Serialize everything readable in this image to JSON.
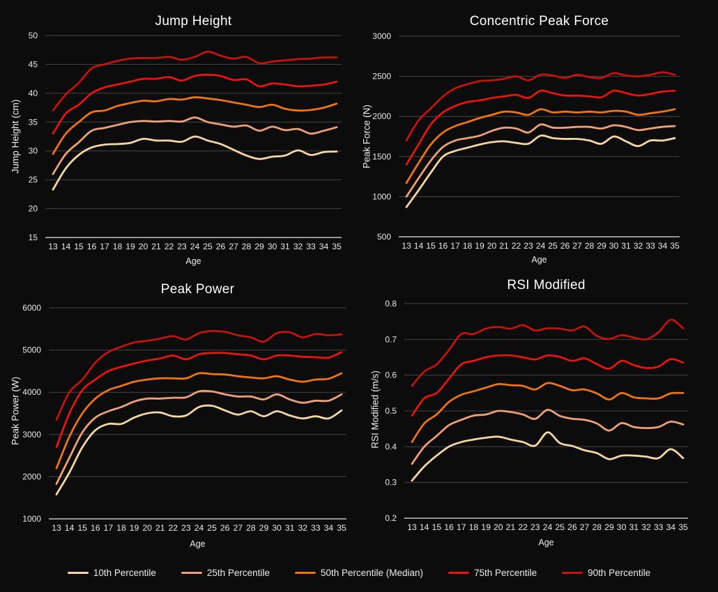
{
  "colors": {
    "background": "#0c0c0c",
    "grid": "#464646",
    "axis": "#c4c4c4",
    "tick_text": "#e8e8e8",
    "title_text": "#ffffff"
  },
  "legend": {
    "items": [
      {
        "label": "10th Percentile",
        "color": "#f4d7a2"
      },
      {
        "label": "25th Percentile",
        "color": "#efa076"
      },
      {
        "label": "50th Percentile (Median)",
        "color": "#ee7414"
      },
      {
        "label": "75th Percentile",
        "color": "#e8150d"
      },
      {
        "label": "90th Percentile",
        "color": "#c3130b"
      }
    ]
  },
  "chart_data": [
    {
      "id": "jump-height",
      "type": "line",
      "title": "Jump Height",
      "xlabel": "Age",
      "ylabel": "Jump Height (cm)",
      "x": [
        13,
        14,
        15,
        16,
        17,
        18,
        19,
        20,
        21,
        22,
        23,
        24,
        25,
        26,
        27,
        28,
        29,
        30,
        31,
        32,
        33,
        34,
        35
      ],
      "ylim": [
        15,
        50
      ],
      "yticks": [
        15,
        20,
        25,
        30,
        35,
        40,
        45,
        50
      ],
      "ytick_labels": [
        "15",
        "20",
        "25",
        "30",
        "35",
        "40",
        "45",
        "50"
      ],
      "grid": true,
      "series": [
        {
          "name": "10th Percentile",
          "color": "#f4d7a2",
          "values": [
            23.3,
            27.0,
            29.3,
            30.6,
            31.1,
            31.2,
            31.4,
            32.1,
            31.8,
            31.8,
            31.6,
            32.5,
            31.8,
            31.2,
            30.2,
            29.2,
            28.6,
            29.0,
            29.2,
            30.1,
            29.3,
            29.8,
            29.9
          ]
        },
        {
          "name": "25th Percentile",
          "color": "#efa076",
          "values": [
            26.0,
            29.5,
            31.5,
            33.5,
            34.0,
            34.5,
            35.0,
            35.2,
            35.1,
            35.2,
            35.1,
            35.8,
            35.0,
            34.6,
            34.2,
            34.4,
            33.5,
            34.2,
            33.6,
            33.8,
            33.0,
            33.5,
            34.1
          ]
        },
        {
          "name": "50th Percentile (Median)",
          "color": "#ee7414",
          "values": [
            29.5,
            33.0,
            35.0,
            36.7,
            37.0,
            37.8,
            38.3,
            38.7,
            38.6,
            39.0,
            38.9,
            39.3,
            39.1,
            38.8,
            38.4,
            38.0,
            37.6,
            38.0,
            37.3,
            37.0,
            37.1,
            37.5,
            38.2
          ]
        },
        {
          "name": "75th Percentile",
          "color": "#e8150d",
          "values": [
            33.0,
            36.5,
            38.0,
            40.0,
            41.0,
            41.5,
            42.0,
            42.5,
            42.5,
            42.8,
            42.2,
            43.0,
            43.2,
            43.0,
            42.3,
            42.4,
            41.2,
            41.7,
            41.5,
            41.2,
            41.3,
            41.5,
            42.0
          ]
        },
        {
          "name": "90th Percentile",
          "color": "#c3130b",
          "values": [
            37.0,
            39.8,
            41.8,
            44.3,
            45.0,
            45.6,
            46.0,
            46.1,
            46.1,
            46.3,
            45.8,
            46.3,
            47.2,
            46.5,
            46.0,
            46.3,
            45.2,
            45.5,
            45.7,
            45.9,
            46.0,
            46.2,
            46.2
          ]
        }
      ]
    },
    {
      "id": "concentric-peak-force",
      "type": "line",
      "title": "Concentric Peak Force",
      "xlabel": "Age",
      "ylabel": "Peak Force (N)",
      "x": [
        13,
        14,
        15,
        16,
        17,
        18,
        19,
        20,
        21,
        22,
        23,
        24,
        25,
        26,
        27,
        28,
        29,
        30,
        31,
        32,
        33,
        34,
        35
      ],
      "ylim": [
        500,
        3000
      ],
      "yticks": [
        500,
        1000,
        1500,
        2000,
        2500,
        3000
      ],
      "ytick_labels": [
        "500",
        "1000",
        "1500",
        "2000",
        "2500",
        "3000"
      ],
      "grid": true,
      "series": [
        {
          "name": "10th Percentile",
          "color": "#f4d7a2",
          "values": [
            870,
            1080,
            1300,
            1500,
            1570,
            1610,
            1650,
            1680,
            1690,
            1670,
            1660,
            1760,
            1730,
            1720,
            1720,
            1700,
            1660,
            1750,
            1690,
            1630,
            1700,
            1700,
            1730
          ]
        },
        {
          "name": "25th Percentile",
          "color": "#efa076",
          "values": [
            1000,
            1230,
            1450,
            1620,
            1700,
            1730,
            1760,
            1820,
            1860,
            1850,
            1800,
            1900,
            1860,
            1860,
            1870,
            1870,
            1850,
            1890,
            1870,
            1830,
            1850,
            1870,
            1880
          ]
        },
        {
          "name": "50th Percentile (Median)",
          "color": "#ee7414",
          "values": [
            1170,
            1420,
            1650,
            1800,
            1880,
            1930,
            1980,
            2020,
            2060,
            2050,
            2020,
            2090,
            2050,
            2060,
            2050,
            2060,
            2050,
            2070,
            2060,
            2020,
            2040,
            2060,
            2090
          ]
        },
        {
          "name": "75th Percentile",
          "color": "#e8150d",
          "values": [
            1400,
            1650,
            1900,
            2050,
            2130,
            2180,
            2200,
            2230,
            2250,
            2270,
            2230,
            2320,
            2290,
            2260,
            2260,
            2250,
            2240,
            2320,
            2290,
            2260,
            2280,
            2310,
            2320
          ]
        },
        {
          "name": "90th Percentile",
          "color": "#c3130b",
          "values": [
            1700,
            1950,
            2100,
            2250,
            2350,
            2400,
            2440,
            2450,
            2470,
            2500,
            2450,
            2520,
            2510,
            2480,
            2520,
            2490,
            2480,
            2540,
            2510,
            2500,
            2520,
            2550,
            2520
          ]
        }
      ]
    },
    {
      "id": "peak-power",
      "type": "line",
      "title": "Peak Power",
      "xlabel": "Age",
      "ylabel": "Peak Power (W)",
      "x": [
        13,
        14,
        15,
        16,
        17,
        18,
        19,
        20,
        21,
        22,
        23,
        24,
        25,
        26,
        27,
        28,
        29,
        30,
        31,
        32,
        33,
        34,
        35
      ],
      "ylim": [
        1000,
        6000
      ],
      "yticks": [
        1000,
        2000,
        3000,
        4000,
        5000,
        6000
      ],
      "ytick_labels": [
        "1000",
        "2000",
        "3000",
        "4000",
        "5000",
        "6000"
      ],
      "grid": true,
      "series": [
        {
          "name": "10th Percentile",
          "color": "#f4d7a2",
          "values": [
            1580,
            2100,
            2700,
            3100,
            3250,
            3250,
            3400,
            3500,
            3520,
            3430,
            3450,
            3650,
            3680,
            3570,
            3470,
            3550,
            3430,
            3550,
            3450,
            3380,
            3430,
            3380,
            3570
          ]
        },
        {
          "name": "25th Percentile",
          "color": "#efa076",
          "values": [
            1830,
            2450,
            3050,
            3400,
            3550,
            3650,
            3780,
            3850,
            3850,
            3870,
            3880,
            4020,
            4020,
            3950,
            3900,
            3900,
            3830,
            3950,
            3830,
            3750,
            3800,
            3800,
            3950
          ]
        },
        {
          "name": "50th Percentile (Median)",
          "color": "#ee7414",
          "values": [
            2200,
            2950,
            3500,
            3850,
            4050,
            4150,
            4250,
            4300,
            4330,
            4330,
            4330,
            4450,
            4430,
            4420,
            4380,
            4350,
            4330,
            4380,
            4300,
            4250,
            4300,
            4320,
            4450
          ]
        },
        {
          "name": "75th Percentile",
          "color": "#e8150d",
          "values": [
            2700,
            3500,
            4050,
            4300,
            4500,
            4600,
            4680,
            4750,
            4800,
            4870,
            4780,
            4900,
            4930,
            4930,
            4900,
            4870,
            4780,
            4870,
            4870,
            4840,
            4830,
            4820,
            4950
          ]
        },
        {
          "name": "90th Percentile",
          "color": "#c3130b",
          "values": [
            3350,
            4000,
            4300,
            4700,
            4950,
            5080,
            5180,
            5220,
            5270,
            5330,
            5250,
            5400,
            5450,
            5430,
            5350,
            5300,
            5200,
            5400,
            5420,
            5300,
            5380,
            5350,
            5370
          ]
        }
      ]
    },
    {
      "id": "rsi-modified",
      "type": "line",
      "title": "RSI Modified",
      "xlabel": "Age",
      "ylabel": "RSI Modified (m/s)",
      "x": [
        13,
        14,
        15,
        16,
        17,
        18,
        19,
        20,
        21,
        22,
        23,
        24,
        25,
        26,
        27,
        28,
        29,
        30,
        31,
        32,
        33,
        34,
        35
      ],
      "ylim": [
        0.2,
        0.8
      ],
      "yticks": [
        0.2,
        0.3,
        0.4,
        0.5,
        0.6,
        0.7,
        0.8
      ],
      "ytick_labels": [
        "0.2",
        "0.3",
        "0.4",
        "0.5",
        "0.6",
        "0.7",
        "0.8"
      ],
      "grid": true,
      "series": [
        {
          "name": "10th Percentile",
          "color": "#f4d7a2",
          "values": [
            0.305,
            0.345,
            0.375,
            0.4,
            0.413,
            0.42,
            0.425,
            0.428,
            0.42,
            0.413,
            0.403,
            0.44,
            0.41,
            0.402,
            0.39,
            0.382,
            0.365,
            0.375,
            0.375,
            0.372,
            0.368,
            0.393,
            0.368
          ]
        },
        {
          "name": "25th Percentile",
          "color": "#efa076",
          "values": [
            0.352,
            0.4,
            0.43,
            0.46,
            0.475,
            0.487,
            0.49,
            0.5,
            0.497,
            0.49,
            0.478,
            0.503,
            0.486,
            0.478,
            0.475,
            0.465,
            0.445,
            0.466,
            0.455,
            0.452,
            0.455,
            0.47,
            0.462
          ]
        },
        {
          "name": "50th Percentile (Median)",
          "color": "#ee7414",
          "values": [
            0.413,
            0.465,
            0.49,
            0.525,
            0.545,
            0.555,
            0.565,
            0.575,
            0.572,
            0.57,
            0.56,
            0.578,
            0.57,
            0.558,
            0.56,
            0.549,
            0.532,
            0.55,
            0.538,
            0.535,
            0.535,
            0.549,
            0.55
          ]
        },
        {
          "name": "75th Percentile",
          "color": "#e8150d",
          "values": [
            0.487,
            0.535,
            0.55,
            0.59,
            0.63,
            0.64,
            0.65,
            0.655,
            0.655,
            0.65,
            0.644,
            0.655,
            0.651,
            0.64,
            0.647,
            0.631,
            0.618,
            0.64,
            0.628,
            0.62,
            0.624,
            0.645,
            0.635
          ]
        },
        {
          "name": "90th Percentile",
          "color": "#c3130b",
          "values": [
            0.57,
            0.61,
            0.63,
            0.67,
            0.715,
            0.715,
            0.73,
            0.735,
            0.73,
            0.74,
            0.725,
            0.731,
            0.73,
            0.725,
            0.736,
            0.71,
            0.701,
            0.712,
            0.705,
            0.7,
            0.72,
            0.755,
            0.731
          ]
        }
      ]
    }
  ]
}
